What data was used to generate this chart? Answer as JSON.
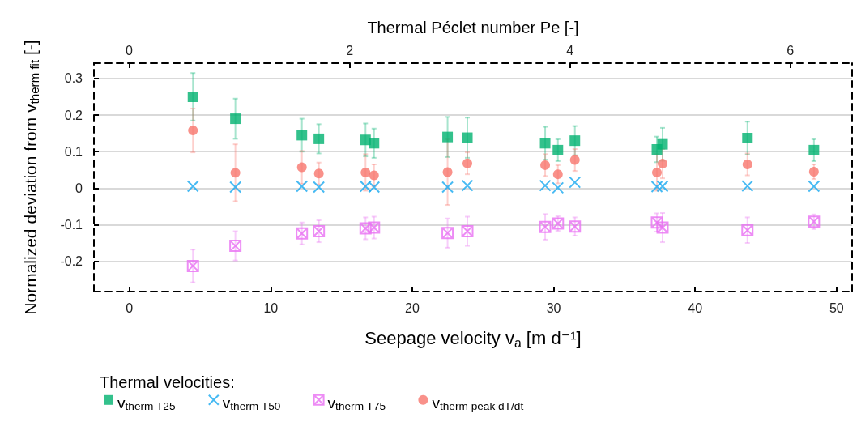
{
  "chart_data": {
    "type": "scatter",
    "xlabel": "Seepage velocity v$_{a}$ [m d⁻¹]",
    "ylabel": "Normalized deviation from v$_{therm fit}$ [-]",
    "x2label": "Thermal Péclet number Pe [-]",
    "legend_title": "Thermal velocities:",
    "x": [
      4.5,
      7.5,
      12.2,
      13.4,
      16.7,
      17.3,
      22.5,
      23.9,
      29.4,
      30.3,
      31.5,
      37.3,
      37.7,
      43.7,
      48.4
    ],
    "xlim": [
      -2.5,
      51.1
    ],
    "xticks": [
      0,
      10,
      20,
      30,
      40,
      50
    ],
    "x2lim": [
      -0.32,
      6.56
    ],
    "x2ticks": [
      0,
      2,
      4,
      6
    ],
    "ylim": [
      -0.283,
      0.342
    ],
    "yticks": [
      -0.2,
      -0.1,
      0.0,
      0.1,
      0.2,
      0.3
    ],
    "grid": "y",
    "legend": "bottom left",
    "series": [
      {
        "name": "v$_{therm T25}$",
        "color": "#00b26f",
        "marker": "square",
        "values": [
          0.25,
          0.19,
          0.145,
          0.135,
          0.132,
          0.123,
          0.14,
          0.138,
          0.123,
          0.104,
          0.13,
          0.106,
          0.12,
          0.137,
          0.104
        ],
        "errors": [
          0.065,
          0.055,
          0.045,
          0.04,
          0.045,
          0.04,
          0.055,
          0.055,
          0.045,
          0.03,
          0.04,
          0.035,
          0.045,
          0.045,
          0.03
        ]
      },
      {
        "name": "v$_{therm T50}$",
        "color": "#19a9f0",
        "marker": "cross",
        "values": [
          0.005,
          0.003,
          0.005,
          0.003,
          0.005,
          0.003,
          0.003,
          0.007,
          0.007,
          0.001,
          0.016,
          0.004,
          0.005,
          0.006,
          0.005
        ]
      },
      {
        "name": "v$_{therm T75}$",
        "color": "#e86ff2",
        "values": [
          -0.213,
          -0.158,
          -0.124,
          -0.118,
          -0.11,
          -0.108,
          -0.123,
          -0.118,
          -0.106,
          -0.097,
          -0.105,
          -0.094,
          -0.108,
          -0.115,
          -0.092
        ],
        "errors": [
          0.045,
          0.04,
          0.03,
          0.03,
          0.03,
          0.03,
          0.04,
          0.04,
          0.035,
          0.02,
          0.025,
          0.025,
          0.04,
          0.035,
          0.02
        ]
      },
      {
        "name": "v$_{therm peak dT/dt}$",
        "color": "#f8766d",
        "marker": "circle",
        "values": [
          0.158,
          0.042,
          0.057,
          0.04,
          0.043,
          0.035,
          0.044,
          0.068,
          0.063,
          0.038,
          0.077,
          0.043,
          0.067,
          0.065,
          0.045
        ],
        "errors": [
          0.06,
          0.078,
          0.045,
          0.03,
          0.05,
          0.03,
          0.09,
          0.03,
          0.03,
          0.025,
          0.03,
          0.05,
          0.04,
          0.03,
          0.02
        ]
      }
    ]
  }
}
